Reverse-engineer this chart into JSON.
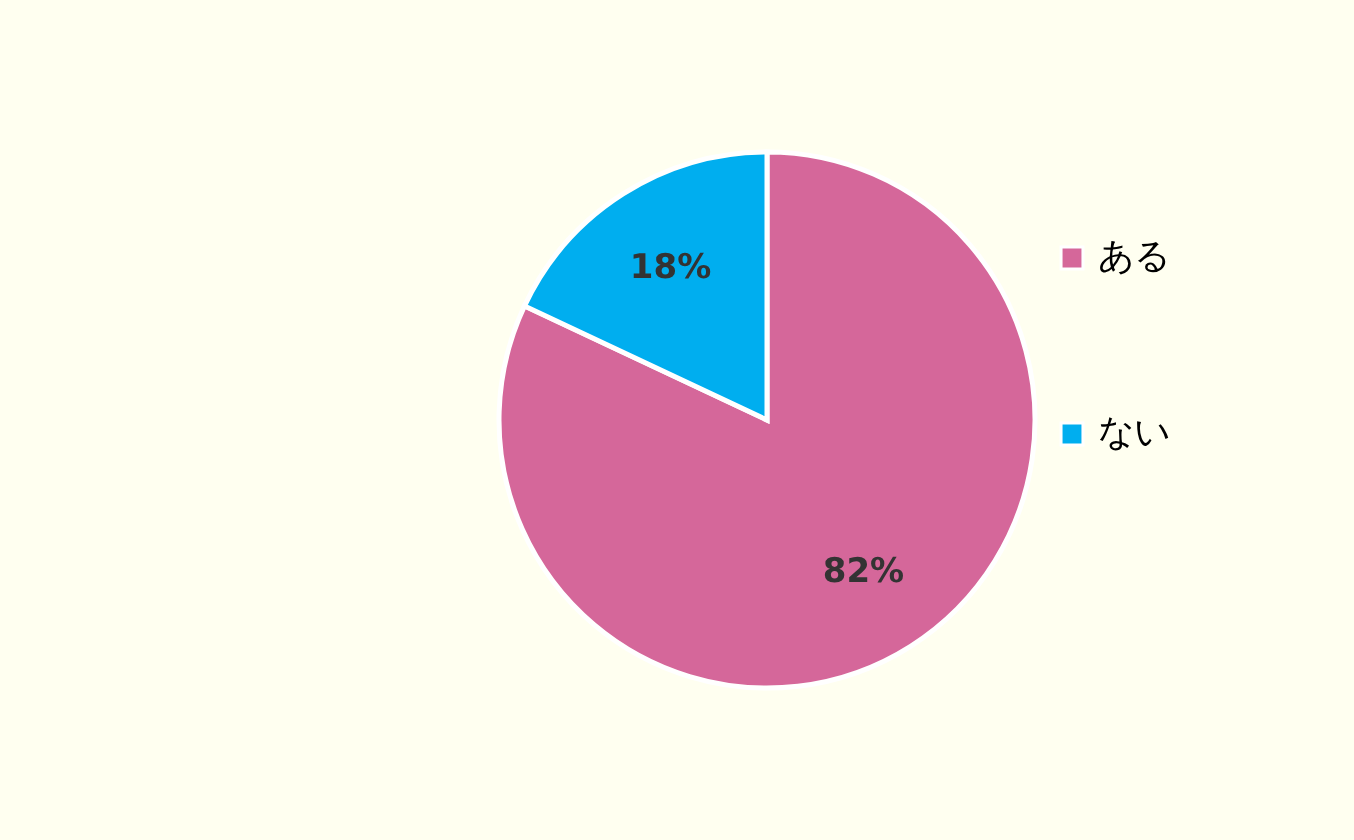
{
  "chart_data": {
    "type": "pie",
    "categories": [
      "ある",
      "ない"
    ],
    "values": [
      82,
      18
    ],
    "colors": [
      "#d5679a",
      "#00aeef"
    ],
    "value_labels": [
      "82%",
      "18%"
    ],
    "legend": "right"
  }
}
